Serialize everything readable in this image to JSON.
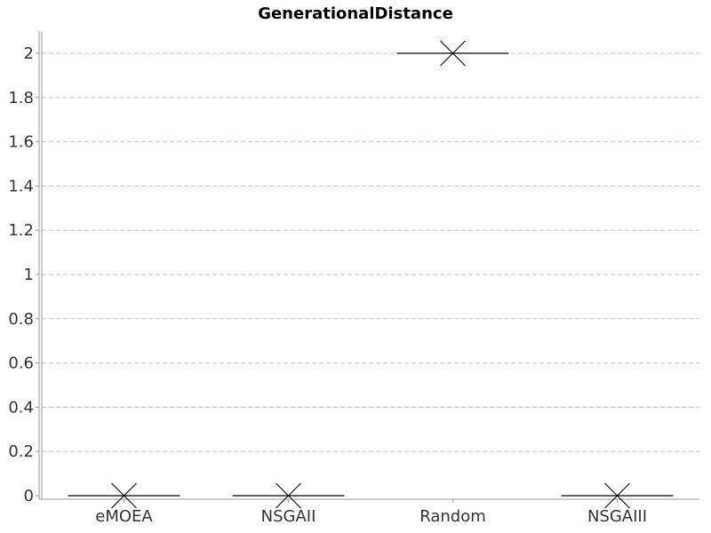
{
  "chart_data": {
    "type": "box",
    "title": "GenerationalDistance",
    "xlabel": "",
    "ylabel": "",
    "categories": [
      "eMOEA",
      "NSGAII",
      "Random",
      "NSGAIII"
    ],
    "values": [
      0.0,
      0.0,
      2.0,
      0.0
    ],
    "means": [
      0.0,
      0.0,
      2.0,
      0.0
    ],
    "ylim": [
      0,
      2.1
    ],
    "yticks": [
      "0",
      "0.2",
      "0.4",
      "0.6",
      "0.8",
      "1",
      "1.2",
      "1.4",
      "1.6",
      "1.8",
      "2"
    ],
    "grid": true,
    "legend": "none"
  }
}
